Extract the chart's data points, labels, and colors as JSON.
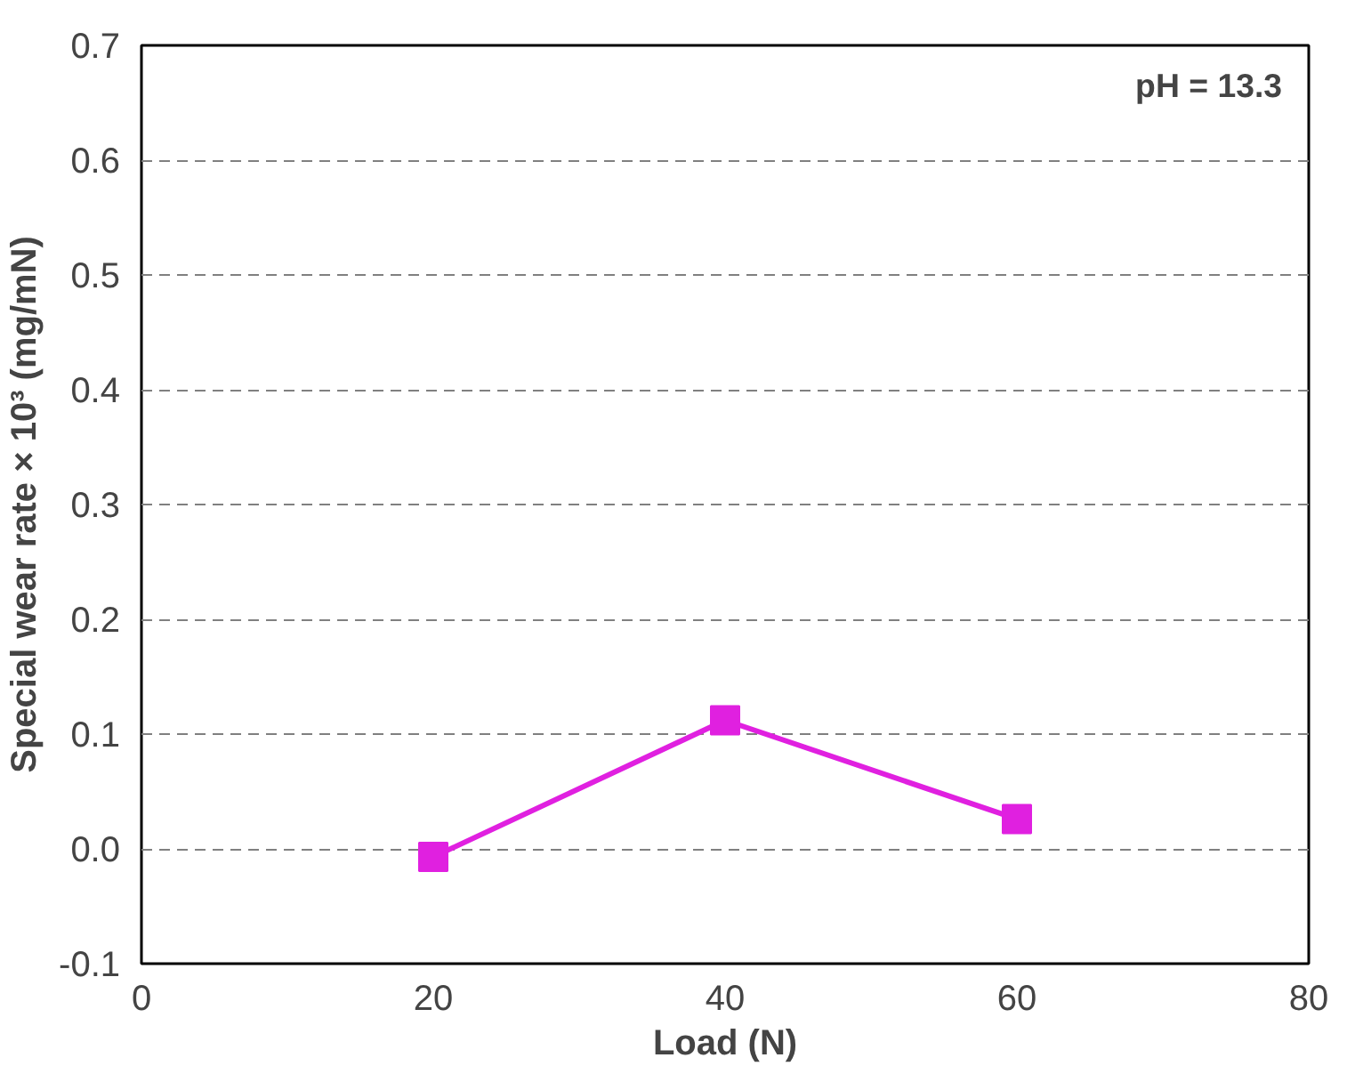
{
  "chart_data": {
    "type": "line",
    "xlabel": "Load (N)",
    "ylabel": "Special wear rate × 10³ (mg/mN)",
    "x": [
      20,
      40,
      60
    ],
    "series": [
      {
        "color": "#e020e0",
        "values": [
          -0.007,
          0.112,
          0.026
        ]
      }
    ],
    "xlim": [
      0,
      80
    ],
    "xticks": [
      0,
      20,
      40,
      60,
      80
    ],
    "ylim": [
      -0.1,
      0.7
    ],
    "yticks": [
      {
        "value": -0.1,
        "label": "-0.1"
      },
      {
        "value": 0,
        "label": "0.0"
      },
      0.1,
      0.2,
      0.3,
      0.4,
      0.5,
      0.6,
      0.7
    ],
    "grid": "y",
    "marker": "square",
    "line_style": "solid",
    "annotations": [
      "pH = 13.3"
    ]
  }
}
